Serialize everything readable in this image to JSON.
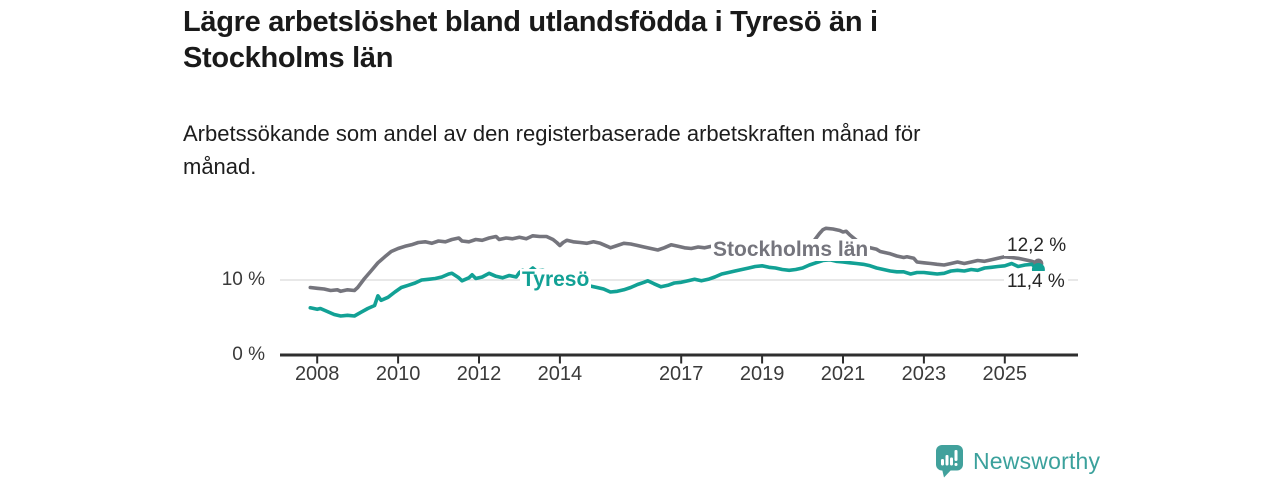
{
  "header": {
    "title_lines": [
      "Lägre arbetslöshet bland utlandsfödda i Tyresö än i",
      "Stockholms län"
    ],
    "subtitle_lines": [
      "Arbetssökande som andel av den registerbaserade arbetskraften månad för",
      "månad."
    ]
  },
  "chart_data": {
    "type": "line",
    "title": "Lägre arbetslöshet bland utlandsfödda i Tyresö än i Stockholms län",
    "subtitle": "Arbetssökande som andel av den registerbaserade arbetskraften månad för månad.",
    "unit": "%",
    "xlim": [
      2007.08,
      2026.81
    ],
    "ylim": [
      0,
      18.67
    ],
    "grid": "horizontal line at 10% only, x tick marks below axis",
    "legend_position": "inline series labels on lines",
    "axis_color": "#2e2e2e",
    "grid_color": "#d9d9d9",
    "x_ticks": [
      {
        "year": 2008,
        "label": "2008"
      },
      {
        "year": 2010,
        "label": "2010"
      },
      {
        "year": 2012,
        "label": "2012"
      },
      {
        "year": 2014,
        "label": "2014"
      },
      {
        "year": 2017,
        "label": "2017"
      },
      {
        "year": 2019,
        "label": "2019"
      },
      {
        "year": 2021,
        "label": "2021"
      },
      {
        "year": 2023,
        "label": "2023"
      },
      {
        "year": 2025,
        "label": "2025"
      }
    ],
    "y_ticks": [
      {
        "value": 0,
        "label": "0 %"
      },
      {
        "value": 10,
        "label": "10 %"
      }
    ],
    "end_labels": [
      {
        "series": "Stockholms län",
        "text": "12,2 %"
      },
      {
        "series": "Tyresö",
        "text": "11,4 %"
      }
    ],
    "series": [
      {
        "name": "Stockholms län",
        "color": "#75757d",
        "end_value_pct": 12.2,
        "points": [
          [
            2007.83,
            9.0
          ],
          [
            2008.0,
            8.9
          ],
          [
            2008.17,
            8.8
          ],
          [
            2008.33,
            8.6
          ],
          [
            2008.5,
            8.7
          ],
          [
            2008.58,
            8.5
          ],
          [
            2008.75,
            8.7
          ],
          [
            2008.92,
            8.6
          ],
          [
            2009.0,
            9.0
          ],
          [
            2009.17,
            10.2
          ],
          [
            2009.33,
            11.2
          ],
          [
            2009.5,
            12.3
          ],
          [
            2009.67,
            13.1
          ],
          [
            2009.83,
            13.8
          ],
          [
            2010.0,
            14.2
          ],
          [
            2010.17,
            14.5
          ],
          [
            2010.33,
            14.7
          ],
          [
            2010.5,
            15.0
          ],
          [
            2010.67,
            15.1
          ],
          [
            2010.83,
            14.9
          ],
          [
            2011.0,
            15.2
          ],
          [
            2011.17,
            15.1
          ],
          [
            2011.33,
            15.4
          ],
          [
            2011.5,
            15.6
          ],
          [
            2011.58,
            15.2
          ],
          [
            2011.75,
            15.1
          ],
          [
            2011.92,
            15.4
          ],
          [
            2012.08,
            15.3
          ],
          [
            2012.25,
            15.6
          ],
          [
            2012.42,
            15.8
          ],
          [
            2012.5,
            15.4
          ],
          [
            2012.67,
            15.6
          ],
          [
            2012.83,
            15.5
          ],
          [
            2013.0,
            15.7
          ],
          [
            2013.17,
            15.5
          ],
          [
            2013.33,
            15.9
          ],
          [
            2013.5,
            15.8
          ],
          [
            2013.67,
            15.8
          ],
          [
            2013.83,
            15.4
          ],
          [
            2013.92,
            15.0
          ],
          [
            2014.0,
            14.6
          ],
          [
            2014.08,
            15.0
          ],
          [
            2014.17,
            15.3
          ],
          [
            2014.33,
            15.1
          ],
          [
            2014.5,
            15.0
          ],
          [
            2014.67,
            14.9
          ],
          [
            2014.83,
            15.1
          ],
          [
            2015.0,
            14.9
          ],
          [
            2015.17,
            14.5
          ],
          [
            2015.25,
            14.3
          ],
          [
            2015.42,
            14.6
          ],
          [
            2015.58,
            14.9
          ],
          [
            2015.75,
            14.8
          ],
          [
            2015.92,
            14.6
          ],
          [
            2016.08,
            14.4
          ],
          [
            2016.25,
            14.2
          ],
          [
            2016.42,
            14.0
          ],
          [
            2016.58,
            14.3
          ],
          [
            2016.75,
            14.7
          ],
          [
            2016.92,
            14.5
          ],
          [
            2017.08,
            14.3
          ],
          [
            2017.25,
            14.2
          ],
          [
            2017.42,
            14.4
          ],
          [
            2017.58,
            14.3
          ],
          [
            2017.75,
            14.5
          ],
          [
            2017.92,
            14.4
          ],
          [
            2018.08,
            14.6
          ],
          [
            2018.25,
            14.7
          ],
          [
            2018.42,
            14.5
          ],
          [
            2018.58,
            14.4
          ],
          [
            2018.75,
            14.2
          ],
          [
            2018.92,
            14.1
          ],
          [
            2019.08,
            13.9
          ],
          [
            2019.25,
            13.7
          ],
          [
            2019.42,
            13.5
          ],
          [
            2019.58,
            13.4
          ],
          [
            2019.75,
            13.4
          ],
          [
            2019.92,
            13.6
          ],
          [
            2020.08,
            13.9
          ],
          [
            2020.25,
            15.0
          ],
          [
            2020.42,
            16.2
          ],
          [
            2020.5,
            16.7
          ],
          [
            2020.58,
            16.9
          ],
          [
            2020.75,
            16.8
          ],
          [
            2020.92,
            16.6
          ],
          [
            2021.0,
            16.4
          ],
          [
            2021.08,
            16.5
          ],
          [
            2021.17,
            16.0
          ],
          [
            2021.33,
            15.3
          ],
          [
            2021.5,
            14.8
          ],
          [
            2021.67,
            14.3
          ],
          [
            2021.83,
            14.1
          ],
          [
            2021.92,
            13.8
          ],
          [
            2022.0,
            13.7
          ],
          [
            2022.17,
            13.5
          ],
          [
            2022.33,
            13.2
          ],
          [
            2022.5,
            13.0
          ],
          [
            2022.58,
            13.1
          ],
          [
            2022.75,
            12.9
          ],
          [
            2022.83,
            12.4
          ],
          [
            2023.0,
            12.3
          ],
          [
            2023.17,
            12.2
          ],
          [
            2023.33,
            12.1
          ],
          [
            2023.5,
            12.0
          ],
          [
            2023.67,
            12.2
          ],
          [
            2023.83,
            12.4
          ],
          [
            2024.0,
            12.2
          ],
          [
            2024.17,
            12.4
          ],
          [
            2024.33,
            12.6
          ],
          [
            2024.5,
            12.5
          ],
          [
            2024.67,
            12.7
          ],
          [
            2024.83,
            12.9
          ],
          [
            2025.0,
            13.1
          ],
          [
            2025.17,
            13.0
          ],
          [
            2025.33,
            12.9
          ],
          [
            2025.5,
            12.7
          ],
          [
            2025.67,
            12.5
          ],
          [
            2025.83,
            12.2
          ]
        ]
      },
      {
        "name": "Tyresö",
        "color": "#12a195",
        "end_value_pct": 11.4,
        "points": [
          [
            2007.83,
            6.3
          ],
          [
            2008.0,
            6.1
          ],
          [
            2008.08,
            6.2
          ],
          [
            2008.25,
            5.8
          ],
          [
            2008.42,
            5.4
          ],
          [
            2008.58,
            5.2
          ],
          [
            2008.75,
            5.3
          ],
          [
            2008.92,
            5.2
          ],
          [
            2009.08,
            5.7
          ],
          [
            2009.25,
            6.2
          ],
          [
            2009.42,
            6.6
          ],
          [
            2009.5,
            7.9
          ],
          [
            2009.58,
            7.3
          ],
          [
            2009.75,
            7.7
          ],
          [
            2009.92,
            8.4
          ],
          [
            2010.08,
            9.0
          ],
          [
            2010.25,
            9.3
          ],
          [
            2010.42,
            9.6
          ],
          [
            2010.58,
            10.0
          ],
          [
            2010.75,
            10.1
          ],
          [
            2010.92,
            10.2
          ],
          [
            2011.08,
            10.4
          ],
          [
            2011.25,
            10.8
          ],
          [
            2011.33,
            10.9
          ],
          [
            2011.5,
            10.3
          ],
          [
            2011.58,
            9.9
          ],
          [
            2011.75,
            10.3
          ],
          [
            2011.83,
            10.7
          ],
          [
            2011.92,
            10.2
          ],
          [
            2012.08,
            10.4
          ],
          [
            2012.25,
            10.9
          ],
          [
            2012.42,
            10.5
          ],
          [
            2012.58,
            10.3
          ],
          [
            2012.75,
            10.6
          ],
          [
            2012.92,
            10.4
          ],
          [
            2013.0,
            11.0
          ],
          [
            2013.08,
            11.3
          ],
          [
            2013.17,
            10.9
          ],
          [
            2013.33,
            11.6
          ],
          [
            2013.42,
            11.2
          ],
          [
            2013.58,
            11.3
          ],
          [
            2013.75,
            11.0
          ],
          [
            2013.92,
            10.7
          ],
          [
            2014.08,
            10.4
          ],
          [
            2014.25,
            10.1
          ],
          [
            2014.42,
            9.8
          ],
          [
            2014.58,
            9.5
          ],
          [
            2014.75,
            9.2
          ],
          [
            2014.92,
            9.0
          ],
          [
            2015.08,
            8.8
          ],
          [
            2015.25,
            8.4
          ],
          [
            2015.42,
            8.5
          ],
          [
            2015.58,
            8.7
          ],
          [
            2015.75,
            9.0
          ],
          [
            2015.92,
            9.4
          ],
          [
            2016.08,
            9.7
          ],
          [
            2016.17,
            9.9
          ],
          [
            2016.33,
            9.5
          ],
          [
            2016.5,
            9.1
          ],
          [
            2016.67,
            9.3
          ],
          [
            2016.83,
            9.6
          ],
          [
            2017.0,
            9.7
          ],
          [
            2017.17,
            9.9
          ],
          [
            2017.33,
            10.1
          ],
          [
            2017.5,
            9.9
          ],
          [
            2017.67,
            10.1
          ],
          [
            2017.83,
            10.4
          ],
          [
            2018.0,
            10.8
          ],
          [
            2018.17,
            11.0
          ],
          [
            2018.33,
            11.2
          ],
          [
            2018.5,
            11.4
          ],
          [
            2018.67,
            11.6
          ],
          [
            2018.83,
            11.8
          ],
          [
            2019.0,
            11.9
          ],
          [
            2019.17,
            11.7
          ],
          [
            2019.33,
            11.6
          ],
          [
            2019.5,
            11.4
          ],
          [
            2019.67,
            11.3
          ],
          [
            2019.83,
            11.4
          ],
          [
            2020.0,
            11.6
          ],
          [
            2020.17,
            12.0
          ],
          [
            2020.33,
            12.3
          ],
          [
            2020.5,
            12.6
          ],
          [
            2020.67,
            12.7
          ],
          [
            2020.83,
            12.5
          ],
          [
            2021.0,
            12.4
          ],
          [
            2021.17,
            12.3
          ],
          [
            2021.33,
            12.2
          ],
          [
            2021.5,
            12.1
          ],
          [
            2021.67,
            11.9
          ],
          [
            2021.83,
            11.6
          ],
          [
            2022.0,
            11.4
          ],
          [
            2022.17,
            11.2
          ],
          [
            2022.33,
            11.1
          ],
          [
            2022.5,
            11.1
          ],
          [
            2022.67,
            10.8
          ],
          [
            2022.83,
            11.0
          ],
          [
            2023.0,
            11.0
          ],
          [
            2023.17,
            10.9
          ],
          [
            2023.33,
            10.8
          ],
          [
            2023.5,
            10.9
          ],
          [
            2023.67,
            11.2
          ],
          [
            2023.83,
            11.3
          ],
          [
            2024.0,
            11.2
          ],
          [
            2024.17,
            11.4
          ],
          [
            2024.33,
            11.3
          ],
          [
            2024.5,
            11.6
          ],
          [
            2024.67,
            11.7
          ],
          [
            2024.83,
            11.8
          ],
          [
            2025.0,
            11.9
          ],
          [
            2025.17,
            12.2
          ],
          [
            2025.33,
            11.8
          ],
          [
            2025.5,
            12.0
          ],
          [
            2025.67,
            12.1
          ],
          [
            2025.83,
            11.4
          ]
        ]
      }
    ]
  },
  "branding": {
    "logo_text": "Newsworthy",
    "logo_color": "#3ba19c",
    "logo_icon": "bar-chart-speech-bubble"
  }
}
